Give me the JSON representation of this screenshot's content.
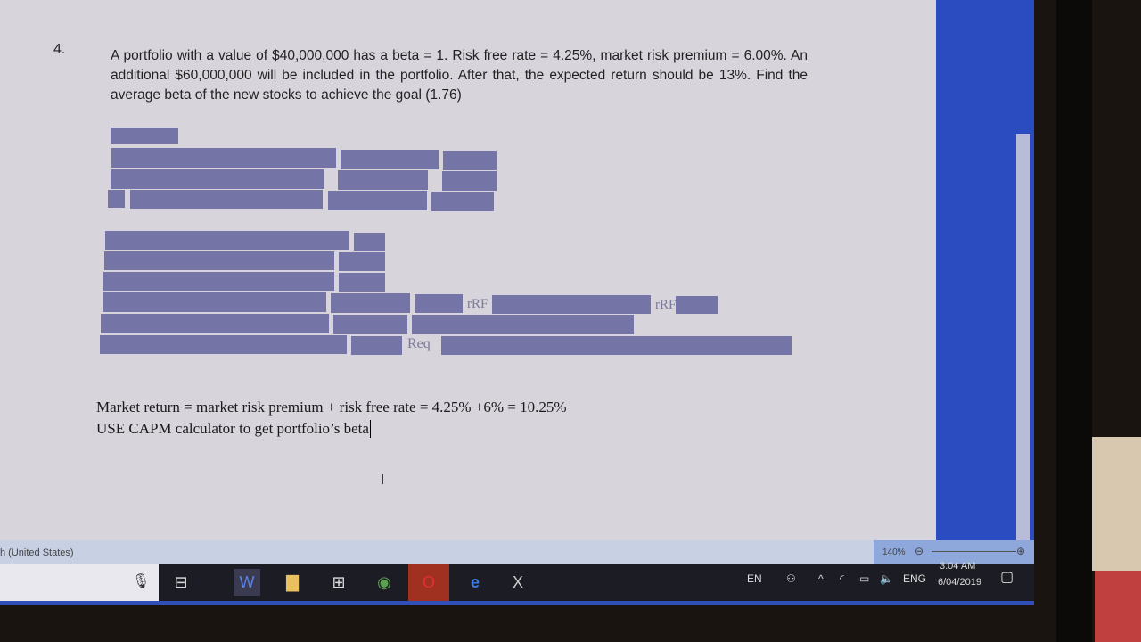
{
  "question": {
    "number": "4.",
    "text": "A portfolio with a value of $40,000,000 has a beta = 1. Risk free rate = 4.25%, market risk premium = 6.00%. An additional $60,000,000 will be included in the portfolio. After that, the expected return should be 13%. Find the average beta of the new stocks to achieve the goal (1.76)"
  },
  "labels": {
    "rrf1": "rRF",
    "rrf2": "rRF",
    "req": "Req"
  },
  "body": {
    "line1": "Market return = market risk premium + risk free rate = 4.25% +6% = 10.25%",
    "line2": "USE CAPM calculator to get portfolio’s beta"
  },
  "status": {
    "language": "h (United States)",
    "zoom": "140%"
  },
  "tray": {
    "lang": "EN",
    "ime": "ENG",
    "time": "3:04 AM",
    "date": "6/04/2019"
  },
  "colors": {
    "redaction": "#7474a6",
    "taskbar": "#1c1c24"
  }
}
